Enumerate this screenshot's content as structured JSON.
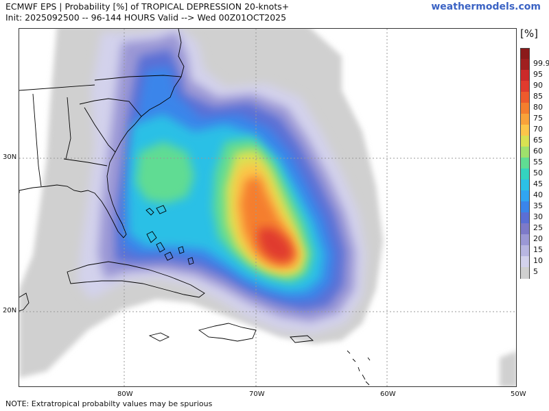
{
  "header": {
    "title_line1": "ECMWF EPS | Probability [%] of TROPICAL DEPRESSION 20-knots+",
    "title_line2": "Init: 2025092500 -- 96-144 HOURS Valid --> Wed 00Z01OCT2025",
    "brand": "weathermodels.com"
  },
  "map": {
    "lat_labels": [
      "30N",
      "20N"
    ],
    "lon_labels": [
      "80W",
      "70W",
      "60W",
      "50W"
    ],
    "land_color": "#ffffff",
    "coast_color": "#000000"
  },
  "colorbar": {
    "unit": "[%]",
    "levels": [
      {
        "label": "99.9",
        "color": "#a01f1f"
      },
      {
        "label": "95",
        "color": "#cc2a2a"
      },
      {
        "label": "90",
        "color": "#e03b2d"
      },
      {
        "label": "85",
        "color": "#ee5a2c"
      },
      {
        "label": "80",
        "color": "#f57e2e"
      },
      {
        "label": "75",
        "color": "#f9a23a"
      },
      {
        "label": "70",
        "color": "#fcc64a"
      },
      {
        "label": "65",
        "color": "#d9e152"
      },
      {
        "label": "60",
        "color": "#9fe06c"
      },
      {
        "label": "55",
        "color": "#60dc93"
      },
      {
        "label": "50",
        "color": "#34d3bf"
      },
      {
        "label": "45",
        "color": "#2cc0e6"
      },
      {
        "label": "40",
        "color": "#30a5f1"
      },
      {
        "label": "35",
        "color": "#3a85ea"
      },
      {
        "label": "30",
        "color": "#5b6fd5"
      },
      {
        "label": "25",
        "color": "#7d7ac9"
      },
      {
        "label": "20",
        "color": "#9b98d5"
      },
      {
        "label": "15",
        "color": "#b8b6e1"
      },
      {
        "label": "10",
        "color": "#d3d2ec"
      },
      {
        "label": "5",
        "color": "#d0d0d0"
      }
    ]
  },
  "footer": {
    "note": "NOTE: Extratropical probabilty values may be spurious"
  }
}
